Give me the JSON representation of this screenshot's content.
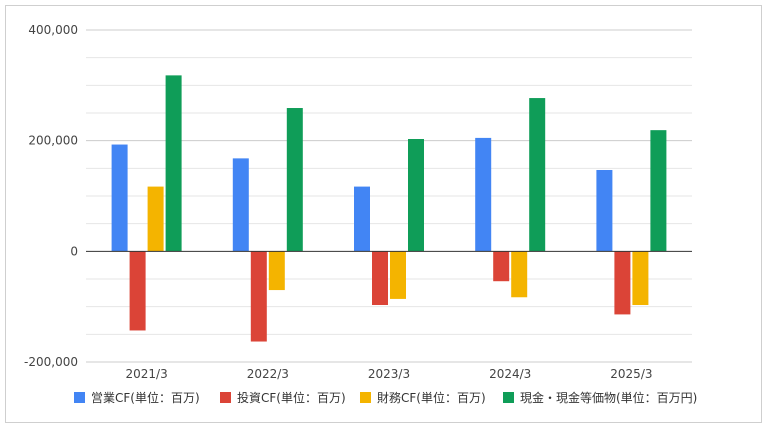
{
  "chart_data": {
    "type": "bar",
    "title": "",
    "xlabel": "",
    "ylabel": "",
    "categories": [
      "2021/3",
      "2022/3",
      "2023/3",
      "2024/3",
      "2025/3"
    ],
    "y_ticks": [
      "400,000",
      "200,000",
      "0",
      "-200,000"
    ],
    "ylim": [
      -200000,
      400000
    ],
    "grid": true,
    "legend_position": "bottom",
    "series": [
      {
        "name": "営業CF(単位：百万)",
        "color": "#4285F4",
        "values": [
          193000,
          168000,
          117000,
          205000,
          147000
        ]
      },
      {
        "name": "投資CF(単位：百万)",
        "color": "#DB4437",
        "values": [
          -143000,
          -163000,
          -97000,
          -54000,
          -114000
        ]
      },
      {
        "name": "財務CF(単位：百万)",
        "color": "#F4B400",
        "values": [
          117000,
          -70000,
          -86000,
          -83000,
          -97000
        ]
      },
      {
        "name": "現金・現金等価物(単位：百万円)",
        "color": "#0F9D58",
        "values": [
          318000,
          259000,
          203000,
          277000,
          219000
        ]
      }
    ]
  }
}
